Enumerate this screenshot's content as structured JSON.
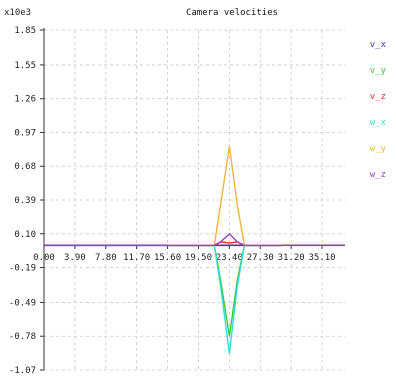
{
  "chart_data": {
    "type": "line",
    "title": "Camera velocities",
    "y_multiplier": "x10e3",
    "xlabel": "",
    "ylabel": "",
    "x_ticks": [
      "0.00",
      "3.90",
      "7.80",
      "11.70",
      "15.60",
      "19.50",
      "23.40",
      "27.30",
      "31.20",
      "35.10"
    ],
    "y_ticks": [
      "1.85",
      "1.55",
      "1.26",
      "0.97",
      "0.68",
      "0.39",
      "0.10",
      "-0.19",
      "-0.49",
      "-0.78",
      "-1.07"
    ],
    "xlim": [
      0,
      38
    ],
    "ylim": [
      -1.07,
      1.85
    ],
    "grid": true,
    "legend_position": "right",
    "series": [
      {
        "name": "v_x",
        "color": "#3a3acc",
        "x": [
          0,
          15.6,
          21.5,
          22.3,
          23.4,
          24.4,
          25.3,
          30
        ],
        "y": [
          0,
          0,
          0,
          0,
          0,
          0,
          0,
          0
        ]
      },
      {
        "name": "v_y",
        "color": "#33cc33",
        "x": [
          15.6,
          21.5,
          22.3,
          23.4,
          24.4,
          25.3,
          30
        ],
        "y": [
          0,
          0,
          -0.3,
          -0.78,
          -0.3,
          0,
          0
        ]
      },
      {
        "name": "v_z",
        "color": "#dd3333",
        "x": [
          15.6,
          21.5,
          22.3,
          23.4,
          24.4,
          25.3,
          30
        ],
        "y": [
          0,
          0,
          0.03,
          0.02,
          0.03,
          0,
          0
        ]
      },
      {
        "name": "w_x",
        "color": "#33dddd",
        "x": [
          15.6,
          21.5,
          22.3,
          23.4,
          24.4,
          25.3,
          30
        ],
        "y": [
          0,
          0,
          -0.35,
          -0.93,
          -0.35,
          0,
          0
        ]
      },
      {
        "name": "w_y",
        "color": "#f0b43c",
        "x": [
          15.6,
          21.5,
          22.3,
          23.4,
          24.4,
          25.3,
          30
        ],
        "y": [
          0,
          0,
          0.35,
          0.85,
          0.35,
          0,
          0
        ]
      },
      {
        "name": "w_z",
        "color": "#a040c0",
        "x": [
          0,
          21.5,
          22.3,
          23.4,
          24.4,
          25.3,
          38
        ],
        "y": [
          0,
          0,
          0.03,
          0.1,
          0.03,
          0,
          0
        ]
      }
    ]
  }
}
